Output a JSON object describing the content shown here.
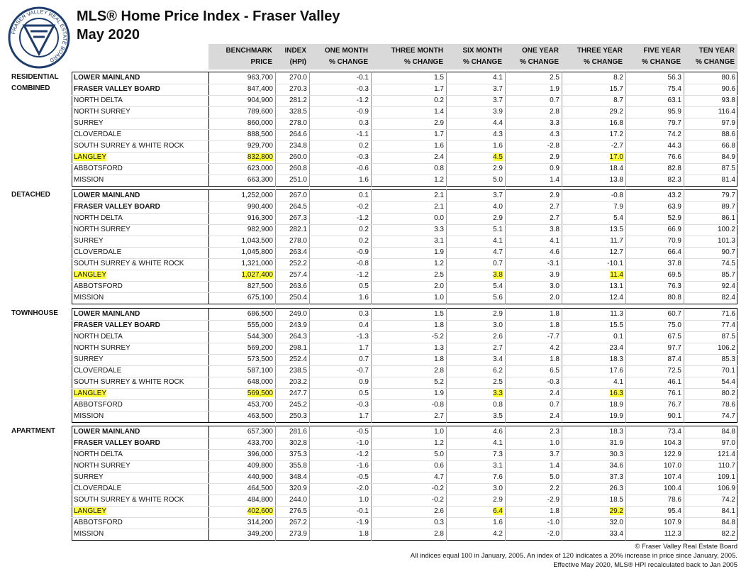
{
  "header": {
    "title": "MLS® Home Price Index - Fraser Valley",
    "subtitle": "May 2020",
    "logo_text": "FRASER VALLEY REAL ESTATE BOARD"
  },
  "columns": [
    [
      "BENCHMARK",
      "PRICE"
    ],
    [
      "INDEX",
      "(HPI)"
    ],
    [
      "ONE MONTH",
      "% CHANGE"
    ],
    [
      "THREE MONTH",
      "% CHANGE"
    ],
    [
      "SIX MONTH",
      "% CHANGE"
    ],
    [
      "ONE YEAR",
      "% CHANGE"
    ],
    [
      "THREE YEAR",
      "% CHANGE"
    ],
    [
      "FIVE YEAR",
      "% CHANGE"
    ],
    [
      "TEN YEAR",
      "% CHANGE"
    ]
  ],
  "sections": [
    {
      "name": [
        "RESIDENTIAL",
        "COMBINED"
      ],
      "rows": [
        [
          "LOWER MAINLAND",
          "963,700",
          "270.0",
          "-0.1",
          "1.5",
          "4.1",
          "2.5",
          "8.2",
          "56.3",
          "80.6"
        ],
        [
          "FRASER VALLEY BOARD",
          "847,400",
          "270.3",
          "-0.3",
          "1.7",
          "3.7",
          "1.9",
          "15.7",
          "75.4",
          "90.6"
        ],
        [
          "NORTH DELTA",
          "904,900",
          "281.2",
          "-1.2",
          "0.2",
          "3.7",
          "0.7",
          "8.7",
          "63.1",
          "93.8"
        ],
        [
          "NORTH SURREY",
          "789,600",
          "328.5",
          "-0.9",
          "1.4",
          "3.9",
          "2.8",
          "29.2",
          "95.9",
          "116.4"
        ],
        [
          "SURREY",
          "860,000",
          "278.0",
          "0.3",
          "2.9",
          "4.4",
          "3.3",
          "16.8",
          "79.7",
          "97.9"
        ],
        [
          "CLOVERDALE",
          "888,500",
          "264.6",
          "-1.1",
          "1.7",
          "4.3",
          "4.3",
          "17.2",
          "74.2",
          "88.6"
        ],
        [
          "SOUTH SURREY & WHITE ROCK",
          "929,700",
          "234.8",
          "0.2",
          "1.6",
          "1.6",
          "-2.8",
          "-2.7",
          "44.3",
          "66.8"
        ],
        [
          "LANGLEY",
          "832,800",
          "260.0",
          "-0.3",
          "2.4",
          "4.5",
          "2.9",
          "17.0",
          "76.6",
          "84.9"
        ],
        [
          "ABBOTSFORD",
          "623,000",
          "260.8",
          "-0.6",
          "0.8",
          "2.9",
          "0.9",
          "18.4",
          "82.8",
          "87.5"
        ],
        [
          "MISSION",
          "663,300",
          "251.0",
          "1.6",
          "1.2",
          "5.0",
          "1.4",
          "13.8",
          "82.3",
          "81.4"
        ]
      ]
    },
    {
      "name": [
        "DETACHED"
      ],
      "rows": [
        [
          "LOWER MAINLAND",
          "1,252,000",
          "267.0",
          "0.1",
          "2.1",
          "3.7",
          "2.9",
          "-0.8",
          "43.2",
          "79.7"
        ],
        [
          "FRASER VALLEY BOARD",
          "990,400",
          "264.5",
          "-0.2",
          "2.1",
          "4.0",
          "2.7",
          "7.9",
          "63.9",
          "89.7"
        ],
        [
          "NORTH DELTA",
          "916,300",
          "267.3",
          "-1.2",
          "0.0",
          "2.9",
          "2.7",
          "5.4",
          "52.9",
          "86.1"
        ],
        [
          "NORTH SURREY",
          "982,900",
          "282.1",
          "0.2",
          "3.3",
          "5.1",
          "3.8",
          "13.5",
          "66.9",
          "100.2"
        ],
        [
          "SURREY",
          "1,043,500",
          "278.0",
          "0.2",
          "3.1",
          "4.1",
          "4.1",
          "11.7",
          "70.9",
          "101.3"
        ],
        [
          "CLOVERDALE",
          "1,045,800",
          "263.4",
          "-0.9",
          "1.9",
          "4.7",
          "4.6",
          "12.7",
          "66.4",
          "90.7"
        ],
        [
          "SOUTH SURREY & WHITE ROCK",
          "1,321,000",
          "252.2",
          "-0.8",
          "1.2",
          "0.7",
          "-3.1",
          "-10.1",
          "37.8",
          "74.5"
        ],
        [
          "LANGLEY",
          "1,027,400",
          "257.4",
          "-1.2",
          "2.5",
          "3.8",
          "3.9",
          "11.4",
          "69.5",
          "85.7"
        ],
        [
          "ABBOTSFORD",
          "827,500",
          "263.6",
          "0.5",
          "2.0",
          "5.4",
          "3.0",
          "13.1",
          "76.3",
          "92.4"
        ],
        [
          "MISSION",
          "675,100",
          "250.4",
          "1.6",
          "1.0",
          "5.6",
          "2.0",
          "12.4",
          "80.8",
          "82.4"
        ]
      ]
    },
    {
      "name": [
        "TOWNHOUSE"
      ],
      "rows": [
        [
          "LOWER MAINLAND",
          "686,500",
          "249.0",
          "0.3",
          "1.5",
          "2.9",
          "1.8",
          "11.3",
          "60.7",
          "71.6"
        ],
        [
          "FRASER VALLEY BOARD",
          "555,000",
          "243.9",
          "0.4",
          "1.8",
          "3.0",
          "1.8",
          "15.5",
          "75.0",
          "77.4"
        ],
        [
          "NORTH DELTA",
          "544,300",
          "264.3",
          "-1.3",
          "-5.2",
          "2.6",
          "-7.7",
          "0.1",
          "67.5",
          "87.5"
        ],
        [
          "NORTH SURREY",
          "569,200",
          "298.1",
          "1.7",
          "1.3",
          "2.7",
          "4.2",
          "23.4",
          "97.7",
          "106.2"
        ],
        [
          "SURREY",
          "573,500",
          "252.4",
          "0.7",
          "1.8",
          "3.4",
          "1.8",
          "18.3",
          "87.4",
          "85.3"
        ],
        [
          "CLOVERDALE",
          "587,100",
          "238.5",
          "-0.7",
          "2.8",
          "6.2",
          "6.5",
          "17.6",
          "72.5",
          "70.1"
        ],
        [
          "SOUTH SURREY & WHITE ROCK",
          "648,000",
          "203.2",
          "0.9",
          "5.2",
          "2.5",
          "-0.3",
          "4.1",
          "46.1",
          "54.4"
        ],
        [
          "LANGLEY",
          "569,500",
          "247.7",
          "0.5",
          "1.9",
          "3.3",
          "2.4",
          "16.3",
          "76.1",
          "80.2"
        ],
        [
          "ABBOTSFORD",
          "453,700",
          "245.2",
          "-0.3",
          "-0.8",
          "0.8",
          "0.7",
          "18.9",
          "76.7",
          "78.6"
        ],
        [
          "MISSION",
          "463,500",
          "250.3",
          "1.7",
          "2.7",
          "3.5",
          "2.4",
          "19.9",
          "90.1",
          "74.7"
        ]
      ]
    },
    {
      "name": [
        "APARTMENT"
      ],
      "rows": [
        [
          "LOWER MAINLAND",
          "657,300",
          "281.6",
          "-0.5",
          "1.0",
          "4.6",
          "2.3",
          "18.3",
          "73.4",
          "84.8"
        ],
        [
          "FRASER VALLEY BOARD",
          "433,700",
          "302.8",
          "-1.0",
          "1.2",
          "4.1",
          "1.0",
          "31.9",
          "104.3",
          "97.0"
        ],
        [
          "NORTH DELTA",
          "396,000",
          "375.3",
          "-1.2",
          "5.0",
          "7.3",
          "3.7",
          "30.3",
          "122.9",
          "121.4"
        ],
        [
          "NORTH SURREY",
          "409,800",
          "355.8",
          "-1.6",
          "0.6",
          "3.1",
          "1.4",
          "34.6",
          "107.0",
          "110.7"
        ],
        [
          "SURREY",
          "440,900",
          "348.4",
          "-0.5",
          "4.7",
          "7.6",
          "5.0",
          "37.3",
          "107.4",
          "109.1"
        ],
        [
          "CLOVERDALE",
          "464,500",
          "320.9",
          "-2.0",
          "-0.2",
          "3.0",
          "2.2",
          "26.3",
          "100.4",
          "106.9"
        ],
        [
          "SOUTH SURREY & WHITE ROCK",
          "484,800",
          "244.0",
          "1.0",
          "-0.2",
          "2.9",
          "-2.9",
          "18.5",
          "78.6",
          "74.2"
        ],
        [
          "LANGLEY",
          "402,600",
          "276.5",
          "-0.1",
          "2.6",
          "6.4",
          "1.8",
          "29.2",
          "95.4",
          "84.1"
        ],
        [
          "ABBOTSFORD",
          "314,200",
          "267.2",
          "-1.9",
          "0.3",
          "1.6",
          "-1.0",
          "32.0",
          "107.9",
          "84.8"
        ],
        [
          "MISSION",
          "349,200",
          "273.9",
          "1.8",
          "2.8",
          "4.2",
          "-2.0",
          "33.4",
          "112.3",
          "82.2"
        ]
      ]
    }
  ],
  "footer": [
    "© Fraser Valley Real Estate Board",
    "All indices equal 100 in January, 2005. An index of 120 indicates a 20% increase in price since January, 2005.",
    "Effective May 2020, MLS® HPI recalculated back to Jan 2005"
  ]
}
